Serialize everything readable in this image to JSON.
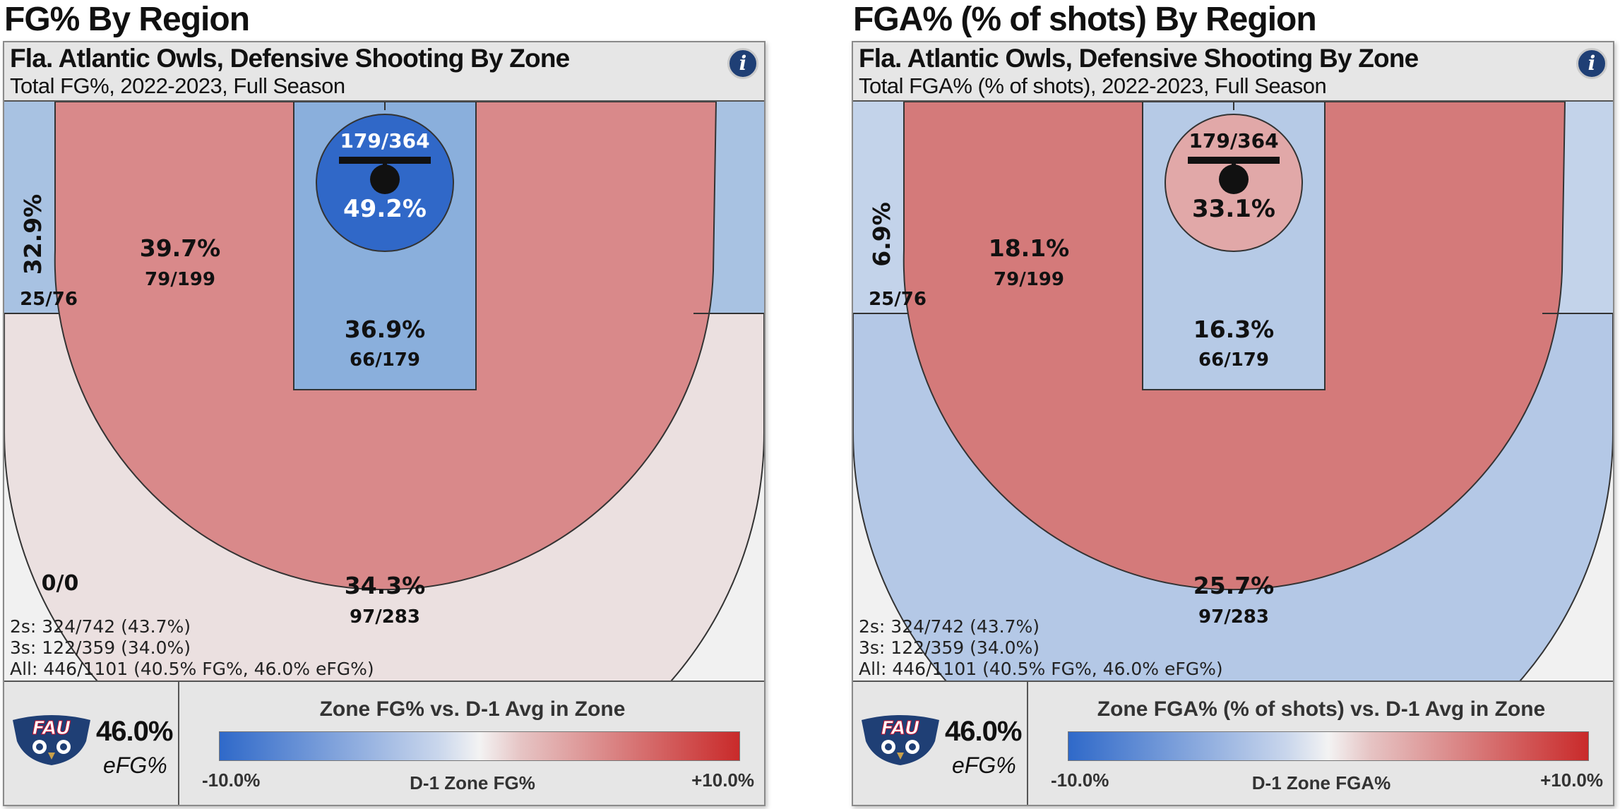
{
  "colors": {
    "scale_low": "#2f69c9",
    "scale_mid": "#f3f3f3",
    "scale_high": "#c92a2a",
    "owls_navy": "#1f3f75"
  },
  "charts": [
    {
      "section_title": "FG% By Region",
      "team_title": "Fla. Atlantic Owls, Defensive Shooting By Zone",
      "subtitle": "Total FG%, 2022-2023, Full Season",
      "info_icon": "i",
      "summary": {
        "twos": "2s: 324/742 (43.7%)",
        "threes": "3s: 122/359 (34.0%)",
        "all": "All: 446/1101 (40.5% FG%, 46.0% eFG%)"
      },
      "efg_value": "46.0%",
      "efg_label": "eFG%",
      "legend": {
        "title": "Zone FG% vs. D-1 Avg in Zone",
        "min": "-10.0%",
        "max": "+10.0%",
        "center_label": "D-1 Zone FG%"
      }
    },
    {
      "section_title": "FGA% (% of shots) By Region",
      "team_title": "Fla. Atlantic Owls, Defensive Shooting By Zone",
      "subtitle": "Total FGA% (% of shots), 2022-2023, Full Season",
      "info_icon": "i",
      "summary": {
        "twos": "2s: 324/742 (43.7%)",
        "threes": "3s: 122/359 (34.0%)",
        "all": "All: 446/1101 (40.5% FG%, 46.0% eFG%)"
      },
      "efg_value": "46.0%",
      "efg_label": "eFG%",
      "legend": {
        "title": "Zone FGA% (% of shots) vs. D-1 Avg in Zone",
        "min": "-10.0%",
        "max": "+10.0%",
        "center_label": "D-1 Zone FGA%"
      }
    }
  ],
  "chart_data": [
    {
      "type": "heatmap",
      "title": "Fla. Atlantic Owls, Defensive Shooting By Zone",
      "subtitle": "Total FG%, 2022-2023, Full Season",
      "metric": "FG%",
      "color_scale": {
        "min": "-10.0%",
        "max": "+10.0%",
        "center": "D-1 Zone FG%"
      },
      "zones": [
        {
          "zone": "rim",
          "value": "49.2%",
          "made_attempts": "179/364",
          "fill": "#3068c8",
          "text_color": "#ffffff"
        },
        {
          "zone": "paint",
          "value": "36.9%",
          "made_attempts": "66/179",
          "fill": "#8aafdc",
          "text_color": "#111111"
        },
        {
          "zone": "mid-range",
          "value": "39.7%",
          "made_attempts": "79/199",
          "fill": "#d9898a",
          "text_color": "#111111"
        },
        {
          "zone": "corner-three",
          "value": "32.9%",
          "made_attempts": "25/76",
          "fill": "#a8c2e2",
          "text_color": "#111111"
        },
        {
          "zone": "above-break-three",
          "value": "34.3%",
          "made_attempts": "97/283",
          "fill": "#ebe0e0",
          "text_color": "#111111"
        },
        {
          "zone": "heave",
          "value": "",
          "made_attempts": "0/0",
          "fill": "#f1f1f1",
          "text_color": "#111111"
        }
      ]
    },
    {
      "type": "heatmap",
      "title": "Fla. Atlantic Owls, Defensive Shooting By Zone",
      "subtitle": "Total FGA% (% of shots), 2022-2023, Full Season",
      "metric": "FGA%",
      "color_scale": {
        "min": "-10.0%",
        "max": "+10.0%",
        "center": "D-1 Zone FGA%"
      },
      "zones": [
        {
          "zone": "rim",
          "value": "33.1%",
          "made_attempts": "179/364",
          "fill": "#e1a8a8",
          "text_color": "#111111"
        },
        {
          "zone": "paint",
          "value": "16.3%",
          "made_attempts": "66/179",
          "fill": "#b6cae6",
          "text_color": "#111111"
        },
        {
          "zone": "mid-range",
          "value": "18.1%",
          "made_attempts": "79/199",
          "fill": "#d47a7a",
          "text_color": "#111111"
        },
        {
          "zone": "corner-three",
          "value": "6.9%",
          "made_attempts": "25/76",
          "fill": "#c3d3ea",
          "text_color": "#111111"
        },
        {
          "zone": "above-break-three",
          "value": "25.7%",
          "made_attempts": "97/283",
          "fill": "#b4c8e6",
          "text_color": "#111111"
        },
        {
          "zone": "heave",
          "value": "",
          "made_attempts": "",
          "fill": "#f1f1f1",
          "text_color": "#111111"
        }
      ]
    }
  ]
}
